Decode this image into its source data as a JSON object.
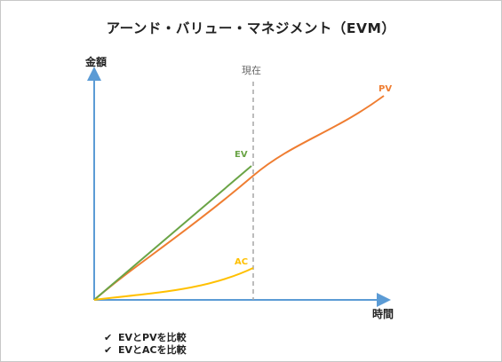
{
  "title": "アーンド・バリュー・マネジメント（EVM）",
  "axes": {
    "y_label": "金額",
    "x_label": "時間"
  },
  "now_marker": {
    "label": "現在"
  },
  "series": [
    {
      "key": "ev",
      "label": "EV",
      "color": "#6aa446"
    },
    {
      "key": "pv",
      "label": "PV",
      "color": "#ef7d31"
    },
    {
      "key": "ac",
      "label": "AC",
      "color": "#ffc000"
    }
  ],
  "colors": {
    "axis": "#5b9bd5",
    "now_line": "#a6a6a6"
  },
  "checklist": [
    {
      "icon": "check-icon",
      "text": "EVとPVを比較"
    },
    {
      "icon": "check-icon",
      "text": "EVとACを比較"
    }
  ]
}
